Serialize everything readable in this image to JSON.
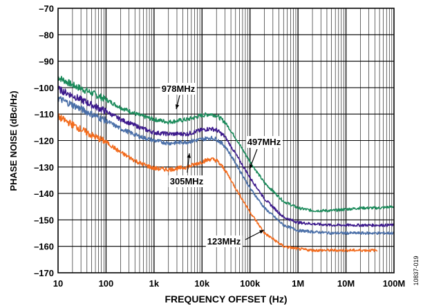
{
  "chart_data": {
    "type": "line",
    "xlabel": "FREQUENCY OFFSET (Hz)",
    "ylabel": "PHASE NOISE (dBc/Hz)",
    "xscale": "log",
    "xlim": [
      10,
      100000000
    ],
    "ylim": [
      -170,
      -70
    ],
    "grid": true,
    "x_ticks": [
      10,
      100,
      1000,
      10000,
      100000,
      1000000,
      10000000,
      100000000
    ],
    "x_tick_labels": [
      "10",
      "100",
      "1k",
      "10k",
      "100k",
      "1M",
      "10M",
      "100M"
    ],
    "y_ticks": [
      -70,
      -80,
      -90,
      -100,
      -110,
      -120,
      -130,
      -140,
      -150,
      -160,
      -170
    ],
    "y_tick_labels": [
      "–70",
      "–80",
      "–90",
      "–100",
      "–110",
      "–120",
      "–130",
      "–140",
      "–150",
      "–160",
      "–170"
    ],
    "figure_id": "10837-019",
    "x": [
      10,
      20,
      50,
      100,
      200,
      500,
      1000,
      2000,
      5000,
      10000,
      15000,
      20000,
      30000,
      50000,
      100000,
      200000,
      500000,
      1000000,
      2000000,
      5000000,
      10000000,
      20000000,
      50000000,
      100000000
    ],
    "series": [
      {
        "label": "978MHz",
        "color": "#1a8a5a",
        "values": [
          -96,
          -99,
          -102,
          -104.5,
          -107.5,
          -110.5,
          -112,
          -113,
          -112,
          -110.5,
          -110,
          -110.5,
          -113,
          -119,
          -128,
          -136,
          -143,
          -145.5,
          -146.5,
          -146.5,
          -146,
          -145.5,
          -145.5,
          -145
        ]
      },
      {
        "label": "497MHz",
        "color": "#3d1a8c",
        "values": [
          -100.5,
          -103,
          -106.5,
          -109,
          -112,
          -115,
          -117,
          -117.5,
          -117.5,
          -116,
          -115.5,
          -116,
          -118.5,
          -125,
          -134,
          -142,
          -149,
          -151,
          -151.5,
          -152,
          -152,
          -152,
          -152,
          -152
        ]
      },
      {
        "label": "305MHz",
        "color": "#4a6fa8",
        "values": [
          -104,
          -106.5,
          -110,
          -112.5,
          -115.5,
          -118.5,
          -120,
          -121,
          -120.5,
          -119.5,
          -119,
          -119.5,
          -122,
          -128.5,
          -138,
          -145.5,
          -152,
          -154,
          -154.5,
          -155,
          -155,
          -155,
          -155,
          -155
        ]
      },
      {
        "label": "123MHz",
        "color": "#f26b1d",
        "values": [
          -111,
          -114,
          -118,
          -120.5,
          -124.5,
          -128.5,
          -130.5,
          -131,
          -130,
          -128,
          -127,
          -127.5,
          -131,
          -138,
          -147,
          -155,
          -160,
          -161,
          -161.5,
          -161.5,
          -161.5,
          -161.5,
          -161.5,
          -161.5
        ]
      }
    ],
    "annotations": [
      {
        "text": "978MHz",
        "series": "978MHz"
      },
      {
        "text": "497MHz",
        "series": "497MHz"
      },
      {
        "text": "305MHz",
        "series": "305MHz"
      },
      {
        "text": "123MHz",
        "series": "123MHz"
      }
    ]
  }
}
